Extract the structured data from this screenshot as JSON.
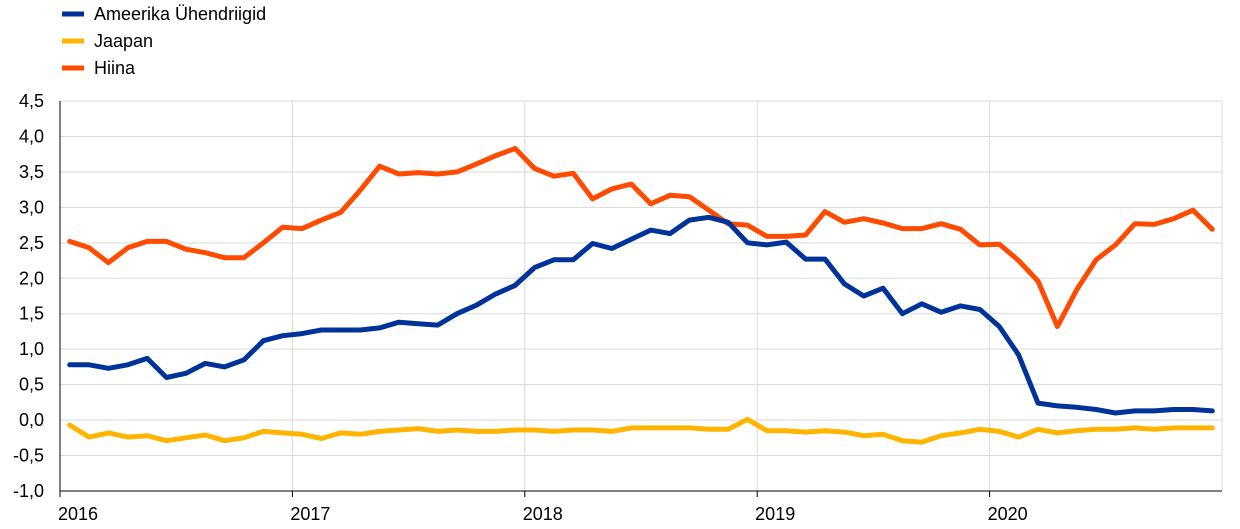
{
  "chart_data": {
    "type": "line",
    "x_start": "2016-01",
    "x_end": "2020-12",
    "x_ticks": [
      "2016",
      "2017",
      "2018",
      "2019",
      "2020"
    ],
    "y_ticks": [
      "4,5",
      "4,0",
      "3,5",
      "3,0",
      "2,5",
      "2,0",
      "1,5",
      "1,0",
      "0,5",
      "0,0",
      "-0,5",
      "-1,0"
    ],
    "ylim": [
      -1.0,
      4.5
    ],
    "grid": true,
    "legend": "top-left",
    "series": [
      {
        "name": "Ameerika Ühendriigid",
        "color": "#003399",
        "values": [
          0.78,
          0.78,
          0.73,
          0.78,
          0.87,
          0.6,
          0.66,
          0.8,
          0.75,
          0.85,
          1.12,
          1.19,
          1.22,
          1.27,
          1.27,
          1.27,
          1.3,
          1.38,
          1.36,
          1.34,
          1.5,
          1.62,
          1.78,
          1.9,
          2.15,
          2.26,
          2.26,
          2.49,
          2.42,
          2.55,
          2.68,
          2.63,
          2.82,
          2.86,
          2.79,
          2.5,
          2.47,
          2.51,
          2.27,
          2.27,
          1.92,
          1.75,
          1.86,
          1.5,
          1.64,
          1.52,
          1.61,
          1.56,
          1.32,
          0.92,
          0.24,
          0.2,
          0.18,
          0.15,
          0.1,
          0.13,
          0.13,
          0.15,
          0.15,
          0.13
        ]
      },
      {
        "name": "Jaapan",
        "color": "#ffb400",
        "values": [
          -0.07,
          -0.24,
          -0.18,
          -0.24,
          -0.22,
          -0.29,
          -0.25,
          -0.21,
          -0.29,
          -0.25,
          -0.16,
          -0.18,
          -0.2,
          -0.26,
          -0.18,
          -0.2,
          -0.16,
          -0.14,
          -0.12,
          -0.16,
          -0.14,
          -0.16,
          -0.16,
          -0.14,
          -0.14,
          -0.16,
          -0.14,
          -0.14,
          -0.16,
          -0.11,
          -0.11,
          -0.11,
          -0.11,
          -0.13,
          -0.13,
          0.01,
          -0.15,
          -0.15,
          -0.17,
          -0.15,
          -0.17,
          -0.22,
          -0.2,
          -0.29,
          -0.31,
          -0.22,
          -0.18,
          -0.13,
          -0.16,
          -0.24,
          -0.13,
          -0.18,
          -0.15,
          -0.13,
          -0.13,
          -0.11,
          -0.13,
          -0.11,
          -0.11,
          -0.11
        ]
      },
      {
        "name": "Hiina",
        "color": "#ff4b00",
        "values": [
          2.52,
          2.43,
          2.22,
          2.43,
          2.52,
          2.52,
          2.41,
          2.36,
          2.29,
          2.29,
          2.5,
          2.72,
          2.7,
          2.82,
          2.93,
          3.24,
          3.58,
          3.47,
          3.49,
          3.47,
          3.5,
          3.61,
          3.73,
          3.83,
          3.55,
          3.44,
          3.48,
          3.12,
          3.26,
          3.33,
          3.05,
          3.17,
          3.15,
          2.96,
          2.77,
          2.75,
          2.59,
          2.59,
          2.61,
          2.94,
          2.79,
          2.84,
          2.78,
          2.7,
          2.7,
          2.77,
          2.69,
          2.47,
          2.48,
          2.25,
          1.96,
          1.32,
          1.84,
          2.26,
          2.47,
          2.77,
          2.76,
          2.84,
          2.96,
          2.69
        ]
      }
    ]
  }
}
